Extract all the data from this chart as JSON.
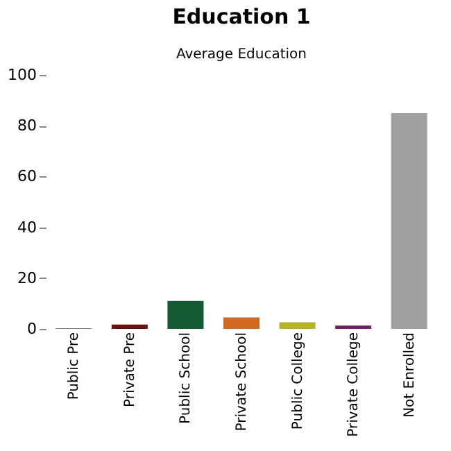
{
  "chart_data": {
    "type": "bar",
    "title": "Education 1",
    "subtitle": "Average Education",
    "categories": [
      "Public Pre",
      "Private Pre",
      "Public School",
      "Private School",
      "Public College",
      "Private College",
      "Not Enrolled"
    ],
    "values": [
      0.3,
      1.7,
      11,
      4.5,
      2.6,
      1.3,
      85
    ],
    "colors": [
      "#1fa8c4",
      "#6e1010",
      "#145a32",
      "#d2691e",
      "#b5b51e",
      "#7a1a6a",
      "#a0a0a0"
    ],
    "ylim": [
      0,
      100
    ],
    "yticks": [
      0,
      20,
      40,
      60,
      80,
      100
    ],
    "grid": false
  }
}
